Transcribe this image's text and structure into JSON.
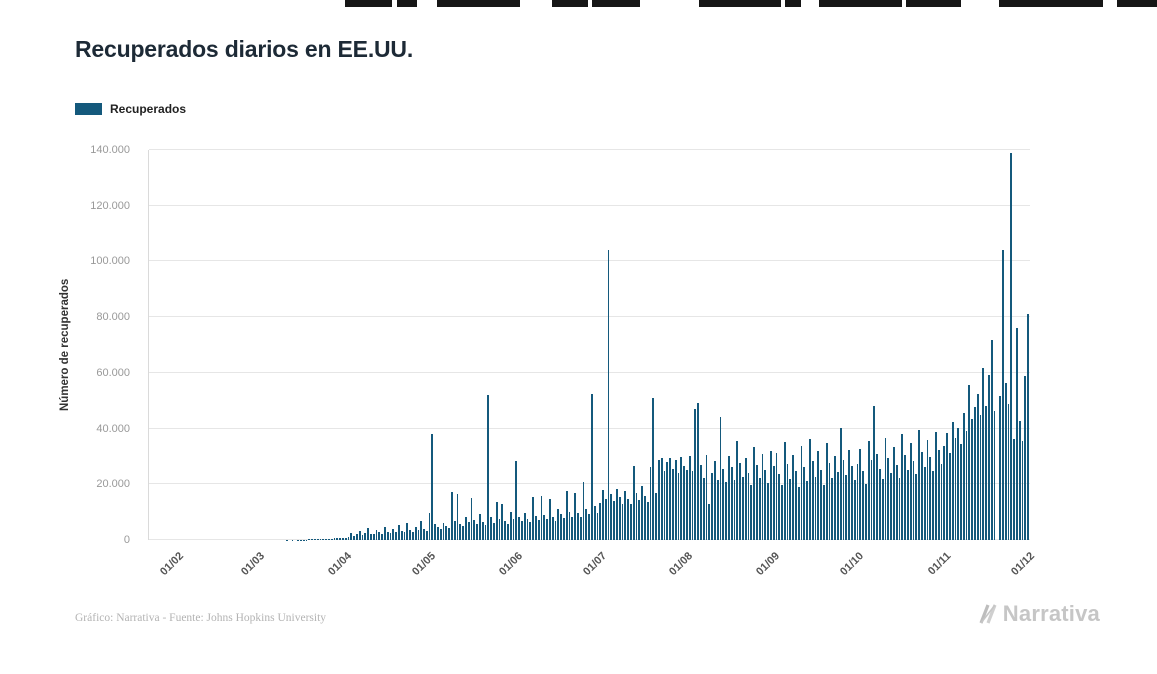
{
  "title": "Recuperados diarios en EE.UU.",
  "legend": {
    "label": "Recuperados"
  },
  "footer": {
    "credit": "Gráfico: Narrativa - Fuente: Johns Hopkins University",
    "brand": "Narrativa"
  },
  "chart_data": {
    "type": "bar",
    "title": "Recuperados diarios en EE.UU.",
    "xlabel": "",
    "ylabel": "Número de recuperados",
    "ylim": [
      0,
      140000
    ],
    "grid": "horizontal",
    "legend_position": "top-left",
    "start_date": "2020-01-22",
    "y_tick_values": [
      0,
      20000,
      40000,
      60000,
      80000,
      100000,
      120000,
      140000
    ],
    "y_tick_labels": [
      "0",
      "20.000",
      "40.000",
      "60.000",
      "80.000",
      "100.000",
      "120.000",
      "140.000"
    ],
    "x_tick_labels": [
      "01/02",
      "01/03",
      "01/04",
      "01/05",
      "01/06",
      "01/07",
      "01/08",
      "01/09",
      "01/10",
      "01/11",
      "01/12"
    ],
    "x_tick_day_index": [
      10,
      39,
      70,
      100,
      131,
      161,
      192,
      223,
      253,
      284,
      314
    ],
    "series": [
      {
        "name": "Recuperados",
        "color": "#14597c",
        "values": [
          0,
          0,
          0,
          0,
          0,
          0,
          0,
          0,
          0,
          0,
          0,
          0,
          0,
          0,
          0,
          0,
          0,
          0,
          0,
          0,
          0,
          0,
          0,
          0,
          0,
          0,
          0,
          0,
          0,
          0,
          0,
          0,
          0,
          0,
          0,
          0,
          0,
          0,
          0,
          0,
          0,
          0,
          0,
          0,
          0,
          0,
          0,
          0,
          0,
          50,
          0,
          80,
          0,
          120,
          150,
          100,
          180,
          220,
          260,
          300,
          350,
          280,
          420,
          380,
          450,
          520,
          580,
          640,
          700,
          760,
          900,
          1200,
          2400,
          1600,
          2100,
          3300,
          1900,
          2600,
          4200,
          2300,
          2000,
          3600,
          2700,
          2200,
          4700,
          3000,
          2500,
          3900,
          2800,
          5500,
          3400,
          2700,
          6000,
          3700,
          2900,
          4500,
          3600,
          6700,
          4100,
          3300,
          9800,
          38000,
          5600,
          4800,
          3900,
          6200,
          5100,
          4400,
          17200,
          6800,
          16400,
          5900,
          5200,
          8100,
          6400,
          15100,
          7100,
          5800,
          9300,
          6600,
          5400,
          52000,
          8300,
          6100,
          13600,
          7400,
          12900,
          6800,
          5900,
          10200,
          7600,
          28500,
          8200,
          6900,
          9800,
          7400,
          6300,
          15300,
          8600,
          7200,
          15800,
          9100,
          7600,
          14700,
          8400,
          6800,
          11200,
          9300,
          7800,
          17500,
          10200,
          8100,
          16800,
          9600,
          8400,
          20700,
          11300,
          9200,
          52300,
          12100,
          9800,
          13200,
          17800,
          14600,
          104000,
          16400,
          13900,
          18200,
          15300,
          13100,
          17600,
          14800,
          12900,
          26400,
          16800,
          14200,
          19500,
          15700,
          13600,
          26100,
          51000,
          16900,
          28700,
          29300,
          24800,
          28100,
          29600,
          25400,
          28900,
          24100,
          29800,
          26700,
          25300,
          30100,
          24600,
          47200,
          49100,
          26800,
          22400,
          30600,
          12800,
          23900,
          28400,
          21700,
          44300,
          25600,
          20900,
          30200,
          26300,
          21500,
          35600,
          27800,
          22600,
          29400,
          24100,
          19800,
          33500,
          26900,
          22100,
          30800,
          25200,
          20400,
          31900,
          26400,
          31200,
          23800,
          19600,
          35100,
          27300,
          21900,
          30400,
          24700,
          18900,
          33600,
          26100,
          21300,
          36200,
          28400,
          22700,
          31800,
          25300,
          19700,
          34900,
          27600,
          22100,
          30100,
          24400,
          40200,
          28800,
          23300,
          32400,
          26700,
          21600,
          27400,
          32800,
          24900,
          20100,
          35600,
          28700,
          48100,
          30900,
          25600,
          21800,
          36700,
          29300,
          24200,
          33500,
          27100,
          22400,
          38200,
          30600,
          25100,
          34800,
          28300,
          23600,
          39400,
          31700,
          26200,
          35900,
          29800,
          24700,
          38800,
          32400,
          27300,
          33600,
          38400,
          31200,
          42300,
          36800,
          40100,
          34500,
          45700,
          39200,
          55800,
          43600,
          47900,
          52300,
          44800,
          61700,
          48200,
          59400,
          71900,
          46300,
          0,
          51800,
          104000,
          56200,
          48700,
          139000,
          36400,
          76100,
          42800,
          35700,
          58900,
          81300
        ]
      }
    ]
  }
}
